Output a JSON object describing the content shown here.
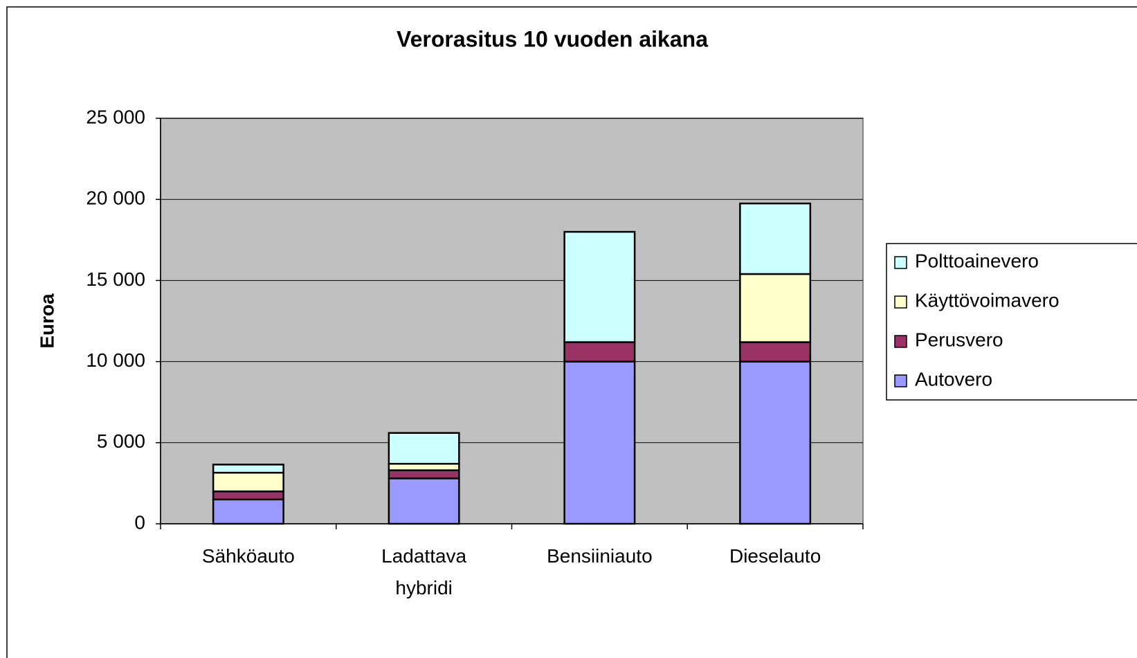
{
  "chart_data": {
    "type": "stacked_bar",
    "title": "Verorasitus 10 vuoden aikana",
    "y_label": "Euroa",
    "categories": [
      "Sähköauto",
      "Ladattava hybridi",
      "Bensiiniauto",
      "Dieselauto"
    ],
    "series": [
      {
        "name": "Autovero",
        "color": "#9999ff",
        "values": [
          1500,
          2800,
          10000,
          10000
        ]
      },
      {
        "name": "Perusvero",
        "color": "#993366",
        "values": [
          500,
          500,
          1200,
          1200
        ]
      },
      {
        "name": "Käyttövoimavero",
        "color": "#ffffcc",
        "values": [
          1150,
          400,
          0,
          4200
        ]
      },
      {
        "name": "Polttoainevero",
        "color": "#ccffff",
        "values": [
          500,
          1900,
          6800,
          4350
        ]
      }
    ],
    "ylim": [
      0,
      25000
    ],
    "yticks": [
      0,
      {
        "value": 5000,
        "label": "5 000"
      },
      {
        "value": 10000,
        "label": "10 000"
      },
      {
        "value": 15000,
        "label": "15 000"
      },
      {
        "value": 20000,
        "label": "20 000"
      },
      {
        "value": 25000,
        "label": "25 000"
      }
    ],
    "grid": true,
    "legend": "right"
  }
}
